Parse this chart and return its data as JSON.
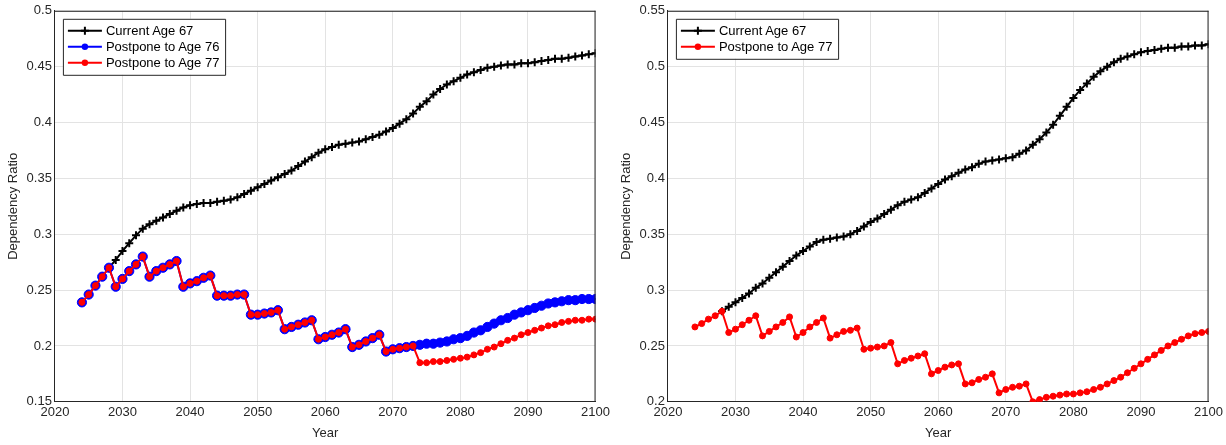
{
  "chart_data": [
    {
      "type": "line",
      "xlabel": "Year",
      "ylabel": "Dependency Ratio",
      "xlim": [
        2020,
        2100
      ],
      "xticks": [
        2020,
        2030,
        2040,
        2050,
        2060,
        2070,
        2080,
        2090,
        2100
      ],
      "ylim": [
        0.15,
        0.5
      ],
      "yticks": [
        0.15,
        0.2,
        0.25,
        0.3,
        0.35,
        0.4,
        0.45,
        0.5
      ],
      "grid": true,
      "legend": "top left",
      "line_style": "solid",
      "x": [
        2024,
        2025,
        2026,
        2027,
        2028,
        2029,
        2030,
        2031,
        2032,
        2033,
        2034,
        2035,
        2036,
        2037,
        2038,
        2039,
        2040,
        2041,
        2042,
        2043,
        2044,
        2045,
        2046,
        2047,
        2048,
        2049,
        2050,
        2051,
        2052,
        2053,
        2054,
        2055,
        2056,
        2057,
        2058,
        2059,
        2060,
        2061,
        2062,
        2063,
        2064,
        2065,
        2066,
        2067,
        2068,
        2069,
        2070,
        2071,
        2072,
        2073,
        2074,
        2075,
        2076,
        2077,
        2078,
        2079,
        2080,
        2081,
        2082,
        2083,
        2084,
        2085,
        2086,
        2087,
        2088,
        2089,
        2090,
        2091,
        2092,
        2093,
        2094,
        2095,
        2096,
        2097,
        2098,
        2099,
        2100
      ],
      "series": [
        {
          "name": "Current Age 67",
          "color": "#000000",
          "marker": "cross",
          "values": [
            null,
            null,
            null,
            null,
            0.27,
            0.277,
            0.285,
            0.292,
            0.299,
            0.305,
            0.309,
            0.312,
            0.315,
            0.318,
            0.321,
            0.324,
            0.326,
            0.327,
            0.328,
            0.328,
            0.329,
            0.33,
            0.331,
            0.333,
            0.336,
            0.339,
            0.342,
            0.345,
            0.348,
            0.351,
            0.354,
            0.357,
            0.361,
            0.365,
            0.369,
            0.373,
            0.376,
            0.378,
            0.38,
            0.381,
            0.382,
            0.383,
            0.385,
            0.387,
            0.389,
            0.392,
            0.395,
            0.399,
            0.403,
            0.408,
            0.414,
            0.419,
            0.425,
            0.43,
            0.434,
            0.437,
            0.44,
            0.443,
            0.445,
            0.447,
            0.449,
            0.45,
            0.451,
            0.452,
            0.452,
            0.453,
            0.453,
            0.454,
            0.455,
            0.456,
            0.457,
            0.457,
            0.458,
            0.459,
            0.46,
            0.461,
            0.462
          ]
        },
        {
          "name": "Postpone to Age 76",
          "color": "#0000ff",
          "marker": "circle",
          "values": [
            0.239,
            0.246,
            0.254,
            0.262,
            0.27,
            0.253,
            0.26,
            0.267,
            0.273,
            0.28,
            0.262,
            0.267,
            0.27,
            0.273,
            0.276,
            0.253,
            0.256,
            0.258,
            0.261,
            0.263,
            0.245,
            0.245,
            0.245,
            0.246,
            0.246,
            0.228,
            0.228,
            0.229,
            0.23,
            0.232,
            0.215,
            0.217,
            0.219,
            0.221,
            0.223,
            0.206,
            0.208,
            0.21,
            0.212,
            0.215,
            0.199,
            0.201,
            0.204,
            0.207,
            0.21,
            0.195,
            0.197,
            0.198,
            0.199,
            0.2,
            0.201,
            0.202,
            0.202,
            0.203,
            0.204,
            0.206,
            0.207,
            0.209,
            0.212,
            0.214,
            0.217,
            0.22,
            0.223,
            0.225,
            0.228,
            0.23,
            0.232,
            0.234,
            0.236,
            0.238,
            0.239,
            0.24,
            0.241,
            0.241,
            0.242,
            0.242,
            0.242
          ]
        },
        {
          "name": "Postpone to Age 77",
          "color": "#ff0000",
          "marker": "circle",
          "values": [
            0.239,
            0.246,
            0.254,
            0.262,
            0.27,
            0.253,
            0.26,
            0.267,
            0.273,
            0.28,
            0.262,
            0.267,
            0.27,
            0.273,
            0.276,
            0.253,
            0.256,
            0.258,
            0.261,
            0.263,
            0.245,
            0.245,
            0.245,
            0.246,
            0.246,
            0.228,
            0.228,
            0.229,
            0.23,
            0.232,
            0.215,
            0.217,
            0.219,
            0.221,
            0.223,
            0.206,
            0.208,
            0.21,
            0.212,
            0.215,
            0.199,
            0.201,
            0.204,
            0.207,
            0.21,
            0.195,
            0.197,
            0.198,
            0.199,
            0.2,
            0.185,
            0.185,
            0.186,
            0.186,
            0.187,
            0.188,
            0.189,
            0.19,
            0.192,
            0.194,
            0.197,
            0.199,
            0.202,
            0.205,
            0.207,
            0.21,
            0.212,
            0.214,
            0.216,
            0.218,
            0.219,
            0.221,
            0.222,
            0.223,
            0.223,
            0.224,
            0.224
          ]
        }
      ]
    },
    {
      "type": "line",
      "xlabel": "Year",
      "ylabel": "Dependency Ratio",
      "xlim": [
        2020,
        2100
      ],
      "xticks": [
        2020,
        2030,
        2040,
        2050,
        2060,
        2070,
        2080,
        2090,
        2100
      ],
      "ylim": [
        0.2,
        0.55
      ],
      "yticks": [
        0.2,
        0.25,
        0.3,
        0.35,
        0.4,
        0.45,
        0.5,
        0.55
      ],
      "grid": true,
      "legend": "top left",
      "line_style": "solid",
      "x": [
        2024,
        2025,
        2026,
        2027,
        2028,
        2029,
        2030,
        2031,
        2032,
        2033,
        2034,
        2035,
        2036,
        2037,
        2038,
        2039,
        2040,
        2041,
        2042,
        2043,
        2044,
        2045,
        2046,
        2047,
        2048,
        2049,
        2050,
        2051,
        2052,
        2053,
        2054,
        2055,
        2056,
        2057,
        2058,
        2059,
        2060,
        2061,
        2062,
        2063,
        2064,
        2065,
        2066,
        2067,
        2068,
        2069,
        2070,
        2071,
        2072,
        2073,
        2074,
        2075,
        2076,
        2077,
        2078,
        2079,
        2080,
        2081,
        2082,
        2083,
        2084,
        2085,
        2086,
        2087,
        2088,
        2089,
        2090,
        2091,
        2092,
        2093,
        2094,
        2095,
        2096,
        2097,
        2098,
        2099,
        2100
      ],
      "series": [
        {
          "name": "Current Age 67",
          "color": "#000000",
          "marker": "cross",
          "values": [
            null,
            null,
            null,
            null,
            0.281,
            0.285,
            0.289,
            0.293,
            0.297,
            0.302,
            0.306,
            0.311,
            0.316,
            0.321,
            0.326,
            0.331,
            0.335,
            0.339,
            0.343,
            0.345,
            0.346,
            0.347,
            0.348,
            0.35,
            0.353,
            0.357,
            0.361,
            0.364,
            0.368,
            0.372,
            0.376,
            0.379,
            0.381,
            0.383,
            0.387,
            0.391,
            0.395,
            0.399,
            0.402,
            0.405,
            0.408,
            0.41,
            0.413,
            0.415,
            0.416,
            0.417,
            0.418,
            0.419,
            0.422,
            0.425,
            0.43,
            0.435,
            0.441,
            0.448,
            0.456,
            0.464,
            0.472,
            0.479,
            0.485,
            0.491,
            0.496,
            0.5,
            0.504,
            0.507,
            0.509,
            0.511,
            0.513,
            0.514,
            0.515,
            0.516,
            0.517,
            0.517,
            0.518,
            0.518,
            0.519,
            0.519,
            0.52
          ]
        },
        {
          "name": "Postpone to Age 77",
          "color": "#ff0000",
          "marker": "circle",
          "values": [
            0.267,
            0.27,
            0.274,
            0.277,
            0.281,
            0.262,
            0.265,
            0.269,
            0.273,
            0.277,
            0.259,
            0.263,
            0.267,
            0.271,
            0.276,
            0.258,
            0.262,
            0.267,
            0.271,
            0.275,
            0.257,
            0.26,
            0.263,
            0.264,
            0.266,
            0.247,
            0.248,
            0.249,
            0.25,
            0.253,
            0.234,
            0.237,
            0.239,
            0.241,
            0.243,
            0.225,
            0.228,
            0.231,
            0.233,
            0.234,
            0.216,
            0.217,
            0.22,
            0.222,
            0.225,
            0.208,
            0.211,
            0.213,
            0.214,
            0.216,
            0.2,
            0.202,
            0.204,
            0.205,
            0.206,
            0.207,
            0.207,
            0.208,
            0.209,
            0.211,
            0.213,
            0.216,
            0.219,
            0.222,
            0.226,
            0.23,
            0.234,
            0.238,
            0.242,
            0.246,
            0.25,
            0.253,
            0.256,
            0.259,
            0.261,
            0.262,
            0.263
          ]
        }
      ]
    }
  ]
}
